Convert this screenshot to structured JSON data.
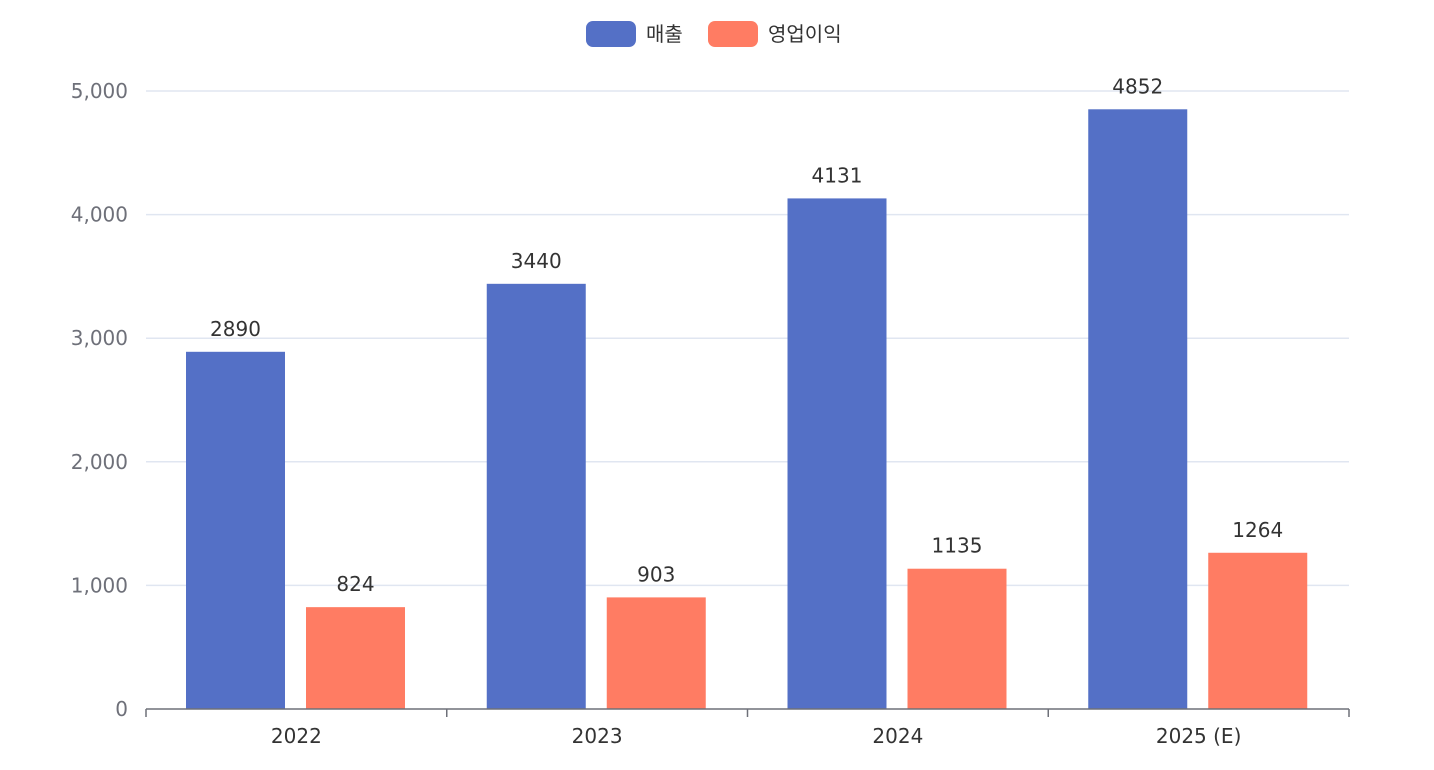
{
  "chart_data": {
    "type": "bar",
    "categories": [
      "2022",
      "2023",
      "2024",
      "2025 (E)"
    ],
    "series": [
      {
        "name": "매출",
        "values": [
          2890,
          3440,
          4131,
          4852
        ],
        "color": "#5470c6"
      },
      {
        "name": "영업이익",
        "values": [
          824,
          903,
          1135,
          1264
        ],
        "color": "#ff7c63"
      }
    ],
    "ylim": [
      0,
      5000
    ],
    "yticks": [
      0,
      1000,
      2000,
      3000,
      4000,
      5000
    ],
    "ytick_labels": [
      "0",
      "1,000",
      "2,000",
      "3,000",
      "4,000",
      "5,000"
    ],
    "grid": true,
    "legend": "top-center",
    "data_labels": true,
    "title": "",
    "xlabel": "",
    "ylabel": ""
  }
}
